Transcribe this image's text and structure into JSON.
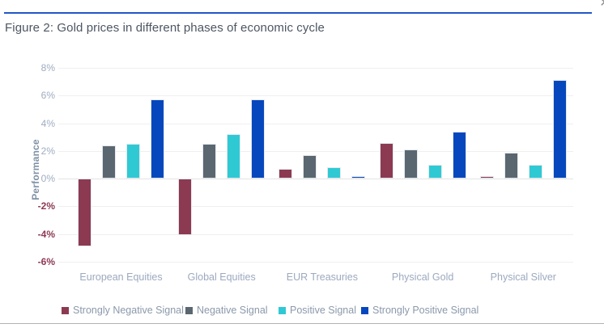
{
  "window": {
    "close_glyph": "✕"
  },
  "figure": {
    "title": "Figure 2: Gold prices in different phases of economic cycle"
  },
  "chart_data": {
    "type": "bar",
    "title": "Gold prices in different phases of economic cycle",
    "xlabel": "",
    "ylabel": "Performance",
    "ylim": [
      -6,
      8
    ],
    "ytick_step": 2,
    "grid": "horizontal",
    "legend_position": "bottom",
    "categories": [
      "European Equities",
      "Global Equities",
      "EUR Treasuries",
      "Physical Gold",
      "Physical Silver"
    ],
    "series": [
      {
        "name": "Strongly Negative Signal",
        "color": "#8C3A52",
        "values": [
          -4.9,
          -4.1,
          0.7,
          2.6,
          0.2
        ]
      },
      {
        "name": "Negative Signal",
        "color": "#5A6770",
        "values": [
          2.4,
          2.5,
          1.7,
          2.1,
          1.9
        ]
      },
      {
        "name": "Positive Signal",
        "color": "#2FC9D4",
        "values": [
          2.5,
          3.2,
          0.8,
          1.0,
          1.0
        ]
      },
      {
        "name": "Strongly Positive Signal",
        "color": "#0647BE",
        "values": [
          5.7,
          5.7,
          0.2,
          3.4,
          7.1
        ]
      }
    ],
    "yticks": [
      {
        "label": "8%",
        "value": 8
      },
      {
        "label": "6%",
        "value": 6
      },
      {
        "label": "4%",
        "value": 4
      },
      {
        "label": "2%",
        "value": 2
      },
      {
        "label": "0%",
        "value": 0
      },
      {
        "label": "-2%",
        "value": -2
      },
      {
        "label": "-4%",
        "value": -4
      },
      {
        "label": "-6%",
        "value": -6
      }
    ],
    "axis_label_colors": {
      "positive": "#9FACC2",
      "negative": "#8C3A52"
    },
    "accent_rule_color": "#2256C7"
  }
}
